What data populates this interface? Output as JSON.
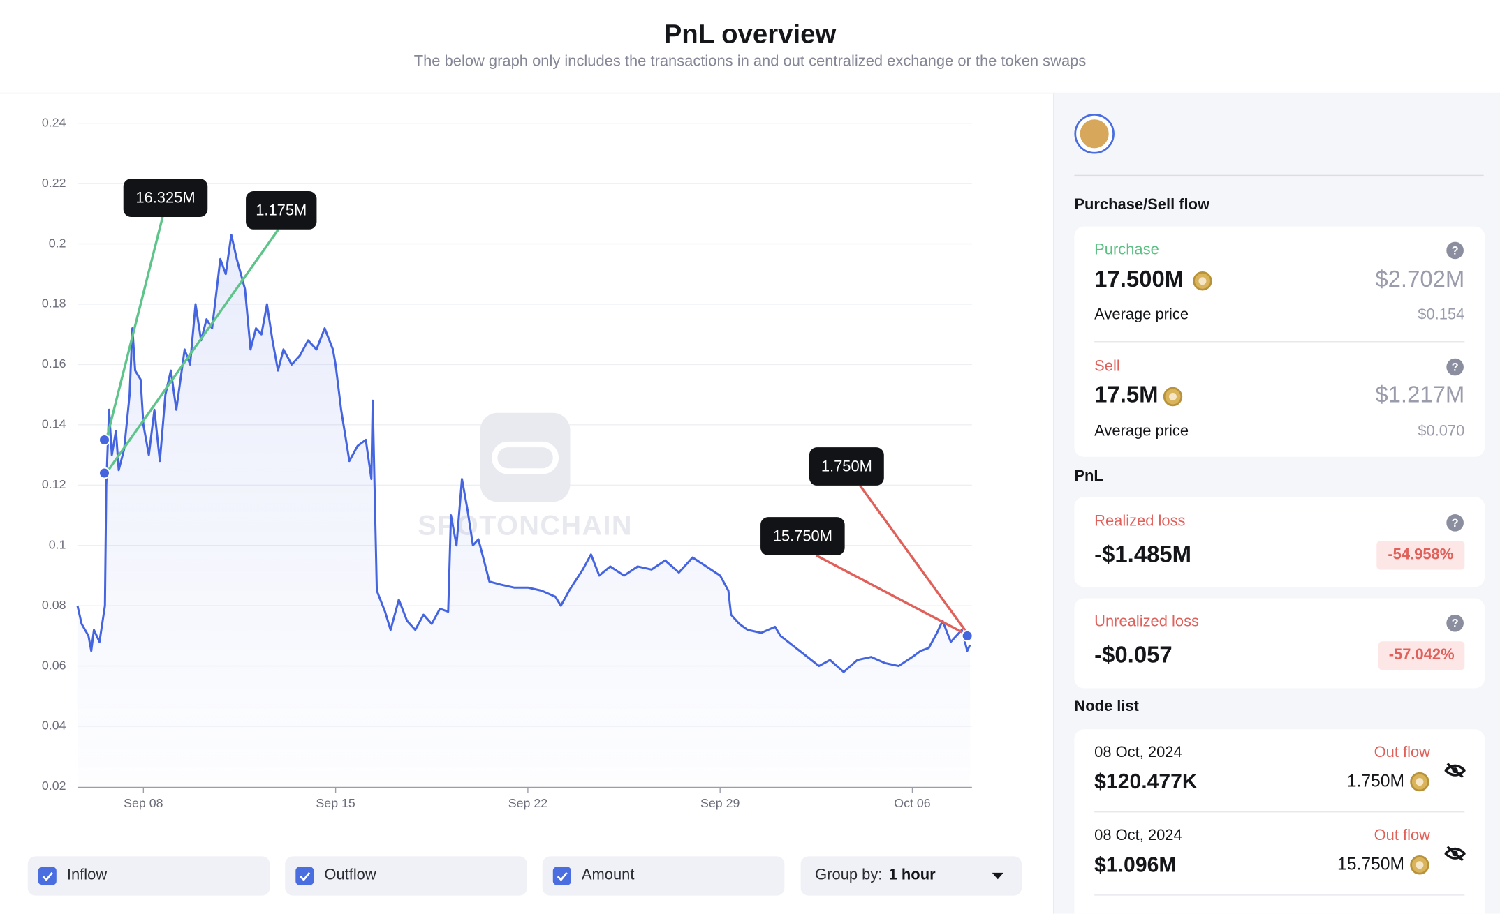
{
  "header": {
    "title": "PnL overview",
    "subtitle": "The below graph only includes the transactions in and out centralized exchange or the token swaps"
  },
  "chart_data": {
    "type": "line",
    "watermark": "SPOTONCHAIN",
    "x": [
      5.6,
      5.75,
      6.0,
      6.1,
      6.2,
      6.4,
      6.6,
      6.65,
      6.75,
      6.85,
      7.0,
      7.1,
      7.3,
      7.5,
      7.6,
      7.7,
      7.9,
      8.0,
      8.2,
      8.4,
      8.6,
      8.8,
      9.0,
      9.2,
      9.5,
      9.7,
      9.9,
      10.1,
      10.3,
      10.5,
      10.8,
      11.0,
      11.2,
      11.4,
      11.7,
      11.9,
      12.1,
      12.3,
      12.5,
      12.7,
      12.9,
      13.1,
      13.4,
      13.7,
      14.0,
      14.3,
      14.6,
      14.9,
      15.0,
      15.2,
      15.5,
      15.8,
      16.1,
      16.3,
      16.35,
      16.5,
      16.8,
      17.0,
      17.3,
      17.6,
      17.9,
      18.2,
      18.5,
      18.8,
      19.1,
      19.2,
      19.4,
      19.6,
      19.8,
      20.0,
      20.2,
      20.4,
      20.6,
      21.0,
      21.5,
      22.0,
      22.5,
      23.0,
      23.2,
      23.5,
      24.0,
      24.3,
      24.6,
      25.0,
      25.5,
      26.0,
      26.5,
      27.0,
      27.5,
      28.0,
      28.5,
      29.0,
      29.3,
      29.4,
      29.7,
      30.0,
      30.5,
      31.0,
      31.2,
      32.6,
      33.0,
      33.5,
      34.0,
      34.5,
      35.0,
      35.5,
      36.0,
      36.3,
      36.6,
      36.9,
      37.1,
      37.4,
      37.8,
      38.0,
      38.1
    ],
    "values": [
      0.08,
      0.074,
      0.07,
      0.065,
      0.072,
      0.068,
      0.08,
      0.12,
      0.145,
      0.13,
      0.138,
      0.125,
      0.132,
      0.15,
      0.172,
      0.158,
      0.155,
      0.14,
      0.13,
      0.145,
      0.128,
      0.15,
      0.158,
      0.145,
      0.165,
      0.16,
      0.18,
      0.168,
      0.175,
      0.172,
      0.195,
      0.19,
      0.203,
      0.195,
      0.185,
      0.165,
      0.172,
      0.17,
      0.18,
      0.168,
      0.158,
      0.165,
      0.16,
      0.163,
      0.168,
      0.165,
      0.172,
      0.165,
      0.16,
      0.145,
      0.128,
      0.133,
      0.135,
      0.122,
      0.148,
      0.085,
      0.078,
      0.072,
      0.082,
      0.075,
      0.072,
      0.077,
      0.074,
      0.079,
      0.078,
      0.11,
      0.1,
      0.122,
      0.112,
      0.1,
      0.102,
      0.095,
      0.088,
      0.087,
      0.086,
      0.086,
      0.085,
      0.083,
      0.08,
      0.085,
      0.092,
      0.097,
      0.09,
      0.093,
      0.09,
      0.093,
      0.092,
      0.095,
      0.091,
      0.096,
      0.093,
      0.09,
      0.085,
      0.077,
      0.074,
      0.072,
      0.071,
      0.073,
      0.07,
      0.06,
      0.062,
      0.058,
      0.062,
      0.063,
      0.061,
      0.06,
      0.063,
      0.065,
      0.066,
      0.071,
      0.075,
      0.068,
      0.072,
      0.065,
      0.067
    ],
    "color": "#4565e0",
    "xlim": [
      5.6,
      38.17
    ],
    "xticks": [
      {
        "value": 8,
        "label": "Sep 08"
      },
      {
        "value": 15,
        "label": "Sep 15"
      },
      {
        "value": 22,
        "label": "Sep 22"
      },
      {
        "value": 29,
        "label": "Sep 29"
      },
      {
        "value": 36,
        "label": "Oct 06"
      }
    ],
    "ylim": [
      0.02,
      0.24
    ],
    "yticks": [
      0.02,
      0.04,
      0.06,
      0.08,
      0.1,
      0.12,
      0.14,
      0.16,
      0.18,
      0.2,
      0.22,
      0.24
    ],
    "grid": true,
    "nodes": [
      {
        "x": 6.58,
        "value": 0.135,
        "label": "16.325M",
        "color": "#5ec48a"
      },
      {
        "x": 6.58,
        "value": 0.124,
        "label": "1.175M",
        "color": "#5ec48a"
      },
      {
        "x": 38.0,
        "value": 0.07,
        "label": "1.750M",
        "color": "#e0605a"
      },
      {
        "x": 38.0,
        "value": 0.07,
        "label": "15.750M",
        "color": "#e0605a"
      }
    ]
  },
  "controls": {
    "inflow": "Inflow",
    "outflow": "Outflow",
    "amount": "Amount",
    "group_label": "Group by:",
    "group_value": "1 hour"
  },
  "panel": {
    "help_icon": "?",
    "section_flow": "Purchase/Sell flow",
    "purchase": {
      "label": "Purchase",
      "amount": "17.500M",
      "usd": "$2.702M",
      "avg_label": "Average price",
      "avg": "$0.154"
    },
    "sell": {
      "label": "Sell",
      "amount": "17.5M",
      "usd": "$1.217M",
      "avg_label": "Average price",
      "avg": "$0.070"
    },
    "section_pnl": "PnL",
    "realized": {
      "label": "Realized loss",
      "value": "-$1.485M",
      "pct": "-54.958%"
    },
    "unrealized": {
      "label": "Unrealized loss",
      "value": "-$0.057",
      "pct": "-57.042%"
    },
    "section_nodes": "Node list",
    "nodes": [
      {
        "date": "08 Oct, 2024",
        "flow": "Out flow",
        "usd": "$120.477K",
        "amount": "1.750M"
      },
      {
        "date": "08 Oct, 2024",
        "flow": "Out flow",
        "usd": "$1.096M",
        "amount": "15.750M"
      }
    ]
  }
}
